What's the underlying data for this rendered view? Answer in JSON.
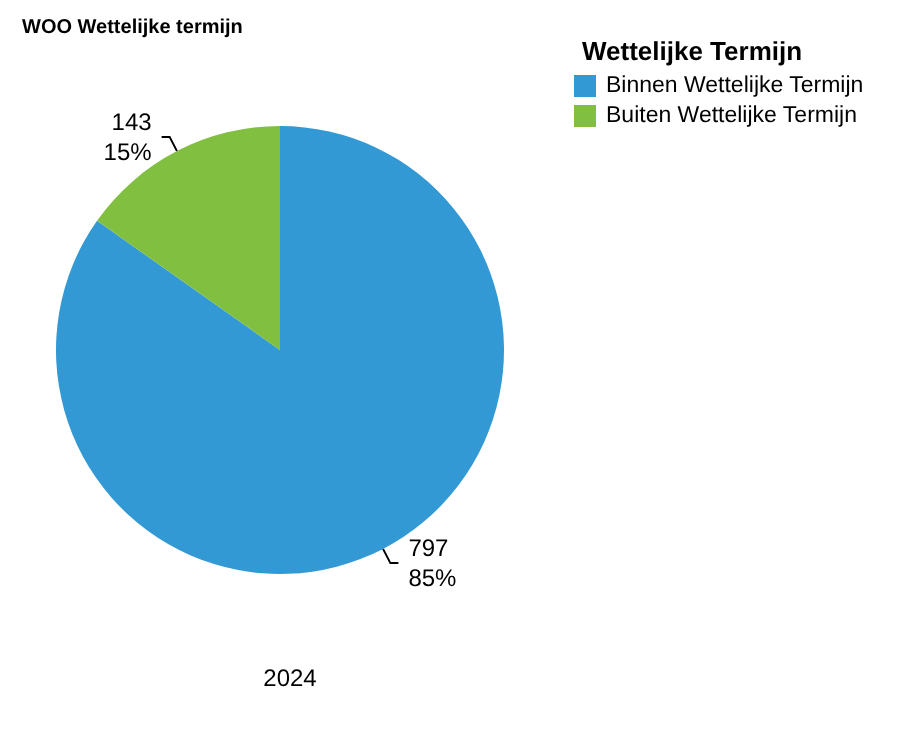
{
  "chart_data": {
    "type": "pie",
    "title": "WOO Wettelijke termijn",
    "xlabel": "2024",
    "legend_title": "Wettelijke Termijn",
    "categories": [
      "Binnen Wettelijke Termijn",
      "Buiten Wettelijke Termijn"
    ],
    "values": [
      797,
      143
    ],
    "colors": [
      "#3399d4",
      "#80bf40"
    ],
    "value_labels": [
      "797\n85%",
      "143\n15%"
    ],
    "legend": "top right"
  }
}
